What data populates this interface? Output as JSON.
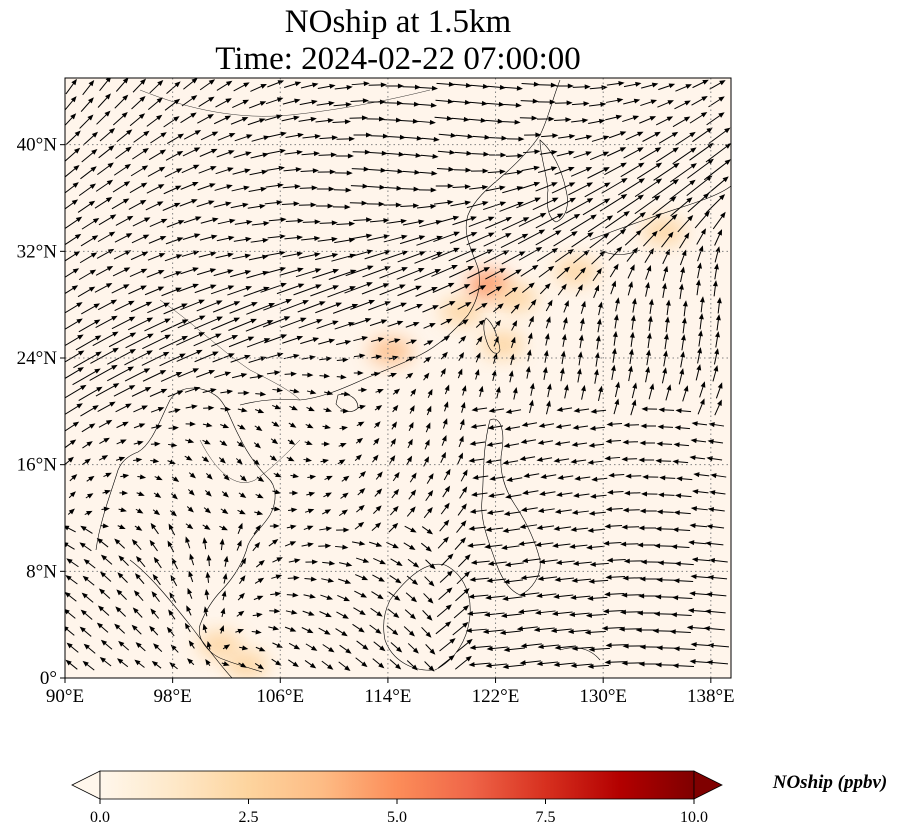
{
  "title": {
    "line1": "NOship at 1.5km",
    "line2": "Time: 2024-02-22 07:00:00"
  },
  "map": {
    "lon_range": [
      90,
      139.5
    ],
    "lat_range": [
      0,
      45
    ],
    "lon_ticks": [
      90,
      98,
      106,
      114,
      122,
      130,
      138
    ],
    "lon_tick_labels": [
      "90°E",
      "98°E",
      "106°E",
      "114°E",
      "122°E",
      "130°E",
      "138°E"
    ],
    "lat_ticks": [
      0,
      8,
      16,
      24,
      32,
      40
    ],
    "lat_tick_labels": [
      "0°",
      "8°N",
      "16°N",
      "24°N",
      "32°N",
      "40°N"
    ],
    "gridlines": "dotted",
    "background_color": "#fff5eb",
    "arrow_color": "#000000",
    "emission_hotspots": [
      {
        "lon": 114.2,
        "lat": 24.5,
        "value": 3.5
      },
      {
        "lon": 119.5,
        "lat": 27.5,
        "value": 2.5
      },
      {
        "lon": 121.5,
        "lat": 29.5,
        "value": 4.5
      },
      {
        "lon": 123.5,
        "lat": 28.5,
        "value": 3.0
      },
      {
        "lon": 122.5,
        "lat": 25.0,
        "value": 3.0
      },
      {
        "lon": 128.0,
        "lat": 30.5,
        "value": 2.0
      },
      {
        "lon": 134.5,
        "lat": 33.5,
        "value": 2.5
      },
      {
        "lon": 101.5,
        "lat": 2.5,
        "value": 2.0
      },
      {
        "lon": 103.5,
        "lat": 1.0,
        "value": 3.0
      }
    ]
  },
  "colorbar": {
    "label": "NOship (ppbv)",
    "ticks": [
      0.0,
      2.5,
      5.0,
      7.5,
      10.0
    ],
    "tick_labels": [
      "0.0",
      "2.5",
      "5.0",
      "7.5",
      "10.0"
    ],
    "min": 0.0,
    "max": 10.0,
    "extend": "both",
    "colormap": "OrRd",
    "colors": [
      "#fff7ec",
      "#fee8c8",
      "#fdd49e",
      "#fdbb84",
      "#fc8d59",
      "#ef6548",
      "#d7301f",
      "#b30000",
      "#7f0000"
    ]
  }
}
